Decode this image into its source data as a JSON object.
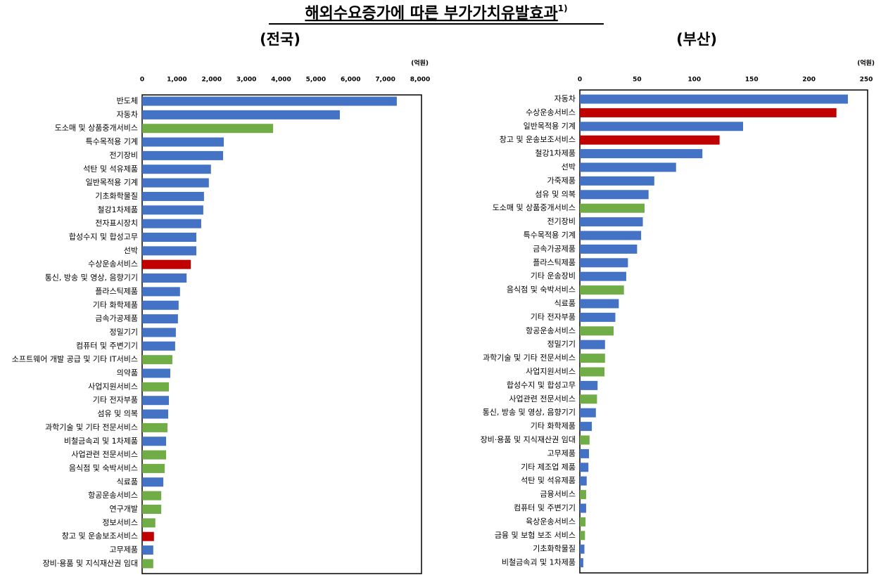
{
  "title": "해외수요증가에 따른 부가가치유발효과",
  "title_note": "1)",
  "chart_data": [
    {
      "type": "barh",
      "title": "(전국)",
      "unit": "(억원)",
      "xlim": [
        0,
        8000
      ],
      "xticks": [
        0,
        {
          "value": 1000,
          "label": "1,000"
        },
        {
          "value": 2000,
          "label": "2,000"
        },
        {
          "value": 3000,
          "label": "3,000"
        },
        {
          "value": 4000,
          "label": "4,000"
        },
        {
          "value": 5000,
          "label": "5,000"
        },
        {
          "value": 6000,
          "label": "6,000"
        },
        {
          "value": 7000,
          "label": "7,000"
        },
        {
          "value": 8000,
          "label": "8,000"
        }
      ],
      "categories": [
        "반도체",
        "자동차",
        "도소매 및 상품중개서비스",
        "특수목적용 기계",
        "전기장비",
        "석탄 및 석유제품",
        "일반목적용 기계",
        "기초화학물질",
        "철강1차제품",
        "전자표시장치",
        "합성수지 및 합성고무",
        "선박",
        "수상운송서비스",
        "통신, 방송 및 영상, 음향기기",
        "플라스틱제품",
        "기타 화학제품",
        "금속가공제품",
        "정밀기기",
        "컴퓨터 및 주변기기",
        "소프트웨어 개발 공급 및 기타 IT서비스",
        "의약품",
        "사업지원서비스",
        "기타 전자부품",
        "섬유 및 의복",
        "과학기술 및 기타 전문서비스",
        "비철금속괴 및 1차제품",
        "사업관련 전문서비스",
        "음식점 및 숙박서비스",
        "식료품",
        "항공운송서비스",
        "연구개발",
        "정보서비스",
        "창고 및 운송보조서비스",
        "고무제품",
        "장비·용품 및 지식재산권 임대"
      ],
      "values": [
        7330,
        5690,
        3770,
        2350,
        2330,
        1980,
        1920,
        1780,
        1760,
        1700,
        1560,
        1560,
        1400,
        1280,
        1090,
        1050,
        1030,
        970,
        950,
        870,
        810,
        770,
        770,
        750,
        730,
        690,
        690,
        650,
        610,
        550,
        550,
        380,
        340,
        320,
        320
      ],
      "colors": [
        "#4472c4",
        "#4472c4",
        "#70ad47",
        "#4472c4",
        "#4472c4",
        "#4472c4",
        "#4472c4",
        "#4472c4",
        "#4472c4",
        "#4472c4",
        "#4472c4",
        "#4472c4",
        "#c00000",
        "#4472c4",
        "#4472c4",
        "#4472c4",
        "#4472c4",
        "#4472c4",
        "#4472c4",
        "#70ad47",
        "#4472c4",
        "#70ad47",
        "#4472c4",
        "#4472c4",
        "#70ad47",
        "#4472c4",
        "#70ad47",
        "#70ad47",
        "#4472c4",
        "#70ad47",
        "#70ad47",
        "#70ad47",
        "#c00000",
        "#4472c4",
        "#70ad47"
      ]
    },
    {
      "type": "barh",
      "title": "(부산)",
      "unit": "(억원)",
      "xlim": [
        0,
        250
      ],
      "xticks": [
        0,
        50,
        100,
        150,
        200,
        250
      ],
      "categories": [
        "자동차",
        "수상운송서비스",
        "일반목적용 기계",
        "창고 및 운송보조서비스",
        "철강1차제품",
        "선박",
        "가죽제품",
        "섬유 및 의복",
        "도소매 및 상품중개서비스",
        "전기장비",
        "특수목적용 기계",
        "금속가공제품",
        "플라스틱제품",
        "기타 운송장비",
        "음식점 및 숙박서비스",
        "식료품",
        "기타 전자부품",
        "항공운송서비스",
        "정밀기기",
        "과학기술 및 기타 전문서비스",
        "사업지원서비스",
        "합성수지 및 합성고무",
        "사업관련 전문서비스",
        "통신, 방송 및 영상, 음향기기",
        "기타 화학제품",
        "장비·용품 및 지식재산권 임대",
        "고무제품",
        "기타 제조업 제품",
        "석탄 및 석유제품",
        "금융서비스",
        "컴퓨터 및 주변기기",
        "육상운송서비스",
        "금융 및 보험 보조 서비스",
        "기초화학물질",
        "비철금속괴 및 1차제품"
      ],
      "values": [
        234,
        224,
        142.5,
        122,
        107,
        84,
        65,
        60,
        56.5,
        55,
        53.5,
        50,
        42,
        40.5,
        38.5,
        34,
        31,
        29.5,
        22,
        22,
        21.5,
        15.5,
        15,
        14,
        10.5,
        8.5,
        8,
        7.5,
        6,
        5.5,
        5.5,
        5,
        4.5,
        4,
        3
      ],
      "colors": [
        "#4472c4",
        "#c00000",
        "#4472c4",
        "#c00000",
        "#4472c4",
        "#4472c4",
        "#4472c4",
        "#4472c4",
        "#70ad47",
        "#4472c4",
        "#4472c4",
        "#4472c4",
        "#4472c4",
        "#4472c4",
        "#70ad47",
        "#4472c4",
        "#4472c4",
        "#70ad47",
        "#4472c4",
        "#70ad47",
        "#70ad47",
        "#4472c4",
        "#70ad47",
        "#4472c4",
        "#4472c4",
        "#70ad47",
        "#4472c4",
        "#4472c4",
        "#4472c4",
        "#70ad47",
        "#4472c4",
        "#70ad47",
        "#70ad47",
        "#4472c4",
        "#4472c4"
      ]
    }
  ]
}
